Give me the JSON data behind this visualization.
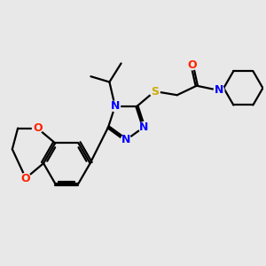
{
  "background_color": "#e8e8e8",
  "atom_colors": {
    "C": "#000000",
    "N": "#0000ff",
    "O": "#ff2200",
    "S": "#ccaa00",
    "H": "#000000"
  },
  "bond_color": "#000000",
  "bond_width": 1.6,
  "font_size_atom": 10,
  "fig_width": 3.0,
  "fig_height": 3.0,
  "dpi": 100
}
